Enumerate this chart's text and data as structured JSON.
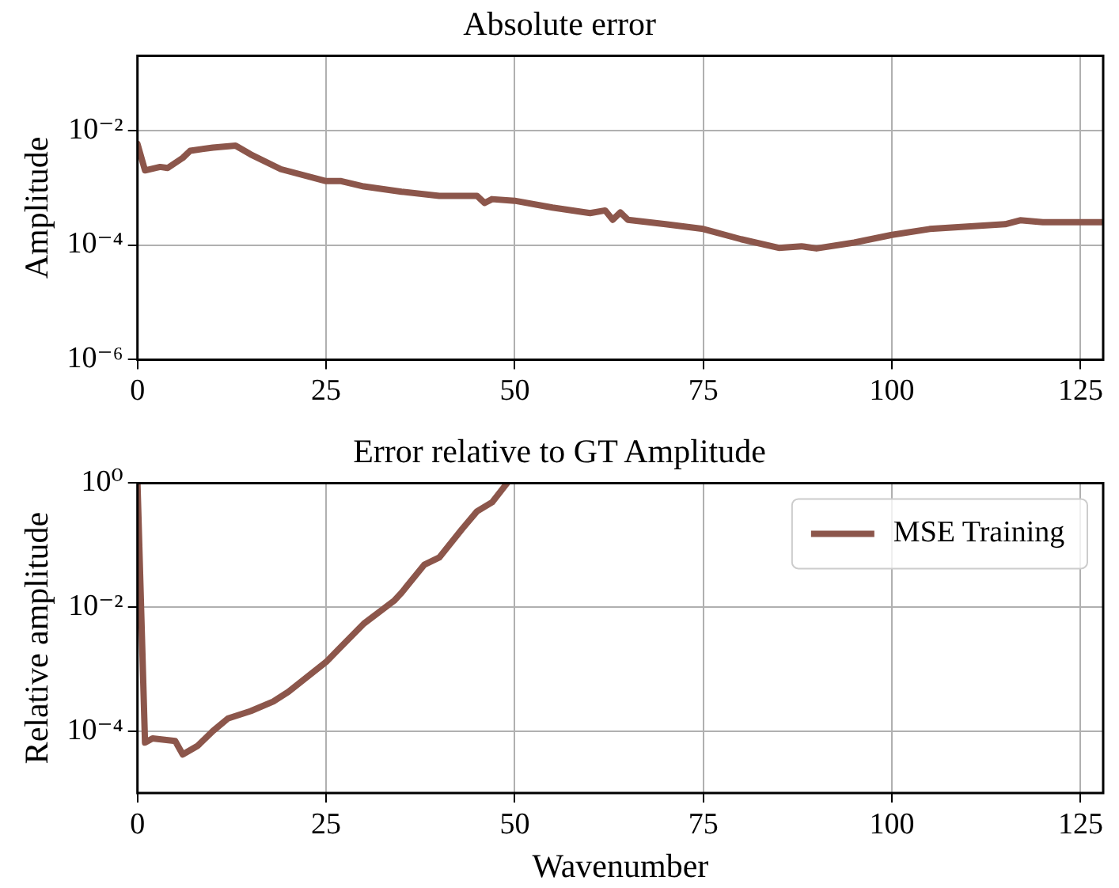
{
  "chart_data": [
    {
      "type": "line",
      "title": "Absolute error",
      "ylabel": "Amplitude",
      "log": "y",
      "grid": true,
      "xlim": [
        0,
        128
      ],
      "xticks": [
        0,
        25,
        50,
        75,
        100,
        125
      ],
      "ylim": [
        1e-06,
        0.2
      ],
      "yticks": [
        {
          "value": 1e-06,
          "label": "10⁻⁶"
        },
        {
          "value": 0.0001,
          "label": "10⁻⁴"
        },
        {
          "value": 0.01,
          "label": "10⁻²"
        }
      ],
      "series": [
        {
          "color": "#8c564b",
          "x": [
            0,
            1,
            3,
            4,
            6,
            7,
            10,
            13,
            15,
            19,
            25,
            27,
            30,
            35,
            40,
            45,
            46,
            47,
            50,
            55,
            60,
            62,
            63,
            64,
            65,
            70,
            75,
            80,
            85,
            88,
            90,
            95,
            100,
            105,
            110,
            115,
            117,
            120,
            125,
            128
          ],
          "values": [
            0.0058,
            0.002,
            0.0023,
            0.0022,
            0.0033,
            0.0044,
            0.005,
            0.0054,
            0.0038,
            0.0021,
            0.0013,
            0.0013,
            0.00105,
            0.00085,
            0.00072,
            0.00072,
            0.00054,
            0.00063,
            0.00059,
            0.00045,
            0.00036,
            0.0004,
            0.000275,
            0.00037,
            0.000275,
            0.00023,
            0.00019,
            0.000126,
            8.9e-05,
            9.5e-05,
            8.7e-05,
            0.00011,
            0.00015,
            0.00019,
            0.00021,
            0.00023,
            0.00027,
            0.00025,
            0.00025,
            0.00025
          ]
        }
      ]
    },
    {
      "type": "line",
      "title": "Error relative to GT Amplitude",
      "xlabel": "Wavenumber",
      "ylabel": "Relative amplitude",
      "log": "y",
      "grid": true,
      "legend": "top right",
      "xlim": [
        0,
        128
      ],
      "xticks": [
        0,
        25,
        50,
        75,
        100,
        125
      ],
      "ylim": [
        1e-05,
        1
      ],
      "yticks": [
        {
          "value": 0.0001,
          "label": "10⁻⁴"
        },
        {
          "value": 0.01,
          "label": "10⁻²"
        },
        {
          "value": 1,
          "label": "10⁰"
        }
      ],
      "series": [
        {
          "name": "MSE Training",
          "color": "#8c564b",
          "x": [
            0,
            1,
            2,
            5,
            6,
            8,
            10,
            12,
            15,
            18,
            20,
            25,
            27,
            30,
            34,
            35,
            38,
            40,
            43,
            45,
            47,
            49
          ],
          "values": [
            1,
            6.5e-05,
            7.6e-05,
            6.9e-05,
            4.2e-05,
            5.8e-05,
            0.0001,
            0.00016,
            0.00021,
            0.0003,
            0.00043,
            0.0013,
            0.0023,
            0.0054,
            0.0126,
            0.017,
            0.048,
            0.063,
            0.18,
            0.35,
            0.49,
            1
          ]
        }
      ]
    }
  ]
}
